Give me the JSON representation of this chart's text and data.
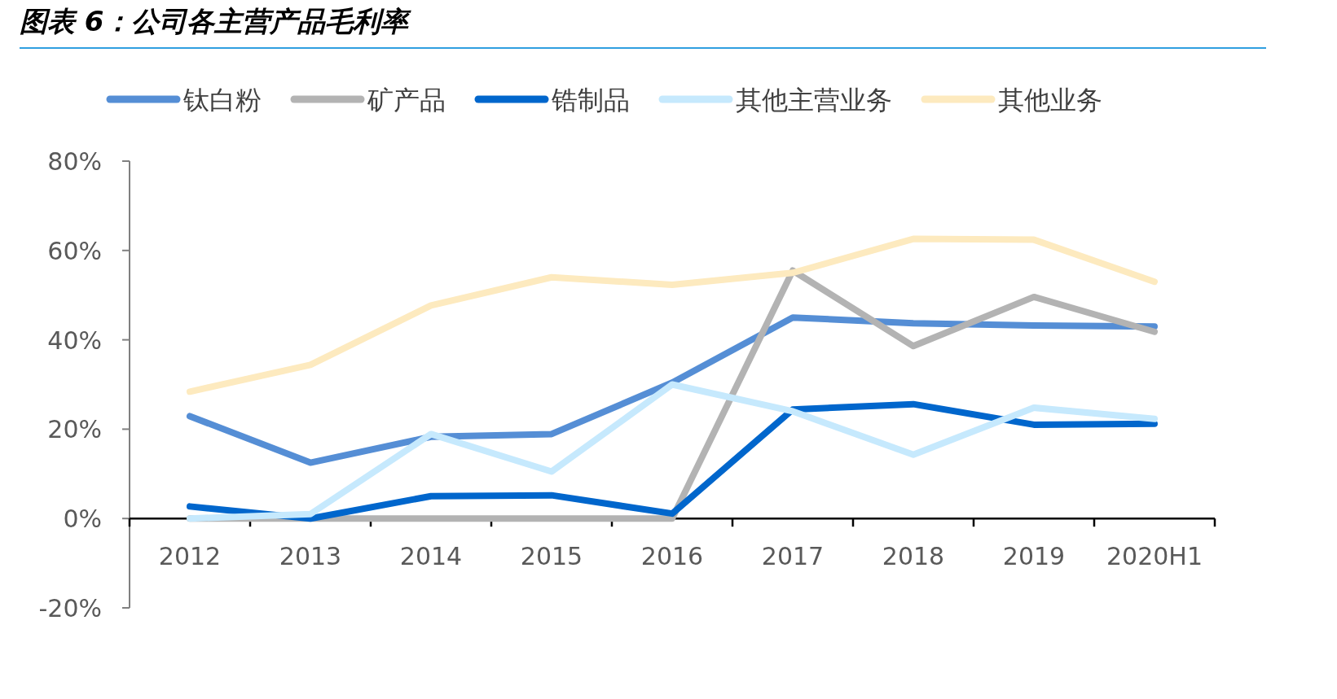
{
  "chart_data": {
    "type": "line",
    "title": "图表 6：公司各主营产品毛利率",
    "categories": [
      "2012",
      "2013",
      "2014",
      "2015",
      "2016",
      "2017",
      "2018",
      "2019",
      "2020H1"
    ],
    "series": [
      {
        "name": "钛白粉",
        "color": "#558ed5",
        "values": [
          22.9,
          12.5,
          18.3,
          18.9,
          30.4,
          45,
          43.7,
          43.2,
          43
        ]
      },
      {
        "name": "矿产品",
        "color": "#b3b3b3",
        "values": [
          0,
          0,
          0,
          0,
          0,
          55.5,
          38.6,
          49.6,
          41.8
        ]
      },
      {
        "name": "锆制品",
        "color": "#0066cc",
        "values": [
          2.7,
          0,
          5,
          5.2,
          1.1,
          24.4,
          25.6,
          21,
          21.2
        ]
      },
      {
        "name": "其他主营业务",
        "color": "#c6e9fd",
        "values": [
          0,
          1,
          18.9,
          10.5,
          30,
          24,
          14.3,
          24.8,
          22.3
        ]
      },
      {
        "name": "其他业务",
        "color": "#fdeabf",
        "values": [
          28.4,
          34.4,
          47.7,
          54,
          52.3,
          55,
          62.6,
          62.4,
          53
        ]
      }
    ],
    "ylim": [
      -20,
      80
    ],
    "yticks": [
      {
        "value": -20,
        "label": "-20%"
      },
      {
        "value": 0,
        "label": "0%"
      },
      {
        "value": 20,
        "label": "20%"
      },
      {
        "value": 40,
        "label": "40%"
      },
      {
        "value": 60,
        "label": "60%"
      },
      {
        "value": 80,
        "label": "80%"
      }
    ],
    "legend": "top",
    "grid": false
  }
}
